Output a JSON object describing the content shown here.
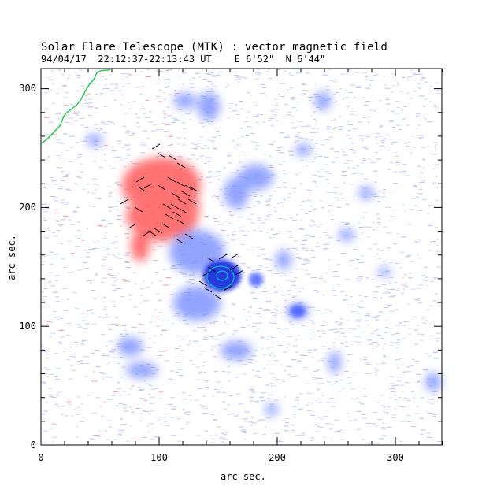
{
  "title": "Solar Flare Telescope (MTK) : vector magnetic field",
  "subtitle": "94/04/17  22:12:37-22:13:43 UT    E 6'52\"  N 6'44\"",
  "xlabel": "arc sec.",
  "ylabel": "arc sec.",
  "axes": {
    "x_ticks": [
      "0",
      "100",
      "200",
      "300"
    ],
    "y_ticks": [
      "0",
      "100",
      "200",
      "300"
    ],
    "xlim": [
      0,
      340
    ],
    "ylim": [
      0,
      315
    ]
  },
  "colors": {
    "positive_polarity": "#ff4d4d",
    "negative_polarity": "#3f5cff",
    "strong_negative_core": "#1020d0",
    "contour": "#00c8c8",
    "limb_line": "#00cc33",
    "transverse_vectors": "#000000"
  }
}
